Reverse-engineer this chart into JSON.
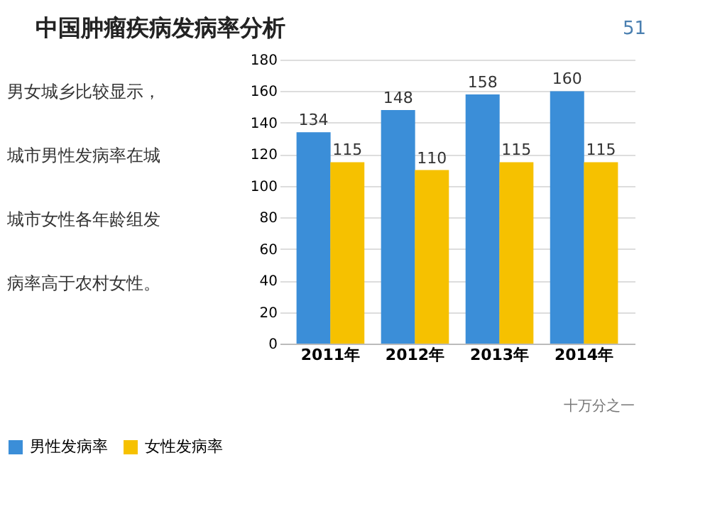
{
  "chart_data": {
    "type": "bar",
    "title": "中国肿瘤疾病发病率分析",
    "categories": [
      "2011年",
      "2012年",
      "2013年",
      "2014年"
    ],
    "series": [
      {
        "name": "男性发病率",
        "color": "#3b8ed8",
        "values": [
          134,
          148,
          158,
          160
        ]
      },
      {
        "name": "女性发病率",
        "color": "#f6c100",
        "values": [
          115,
          110,
          115,
          115
        ]
      }
    ],
    "ylim": [
      0,
      180
    ],
    "yticks": [
      0,
      20,
      40,
      60,
      80,
      100,
      120,
      140,
      160,
      180
    ],
    "grid": "y",
    "legend": "bottom",
    "data_labels": true,
    "annotations": [
      "51",
      "男女城乡比较显示，",
      "城市男性发病率在城",
      "城市女性各年龄组发",
      "病率高于农村女性。",
      "十万分之一"
    ]
  }
}
